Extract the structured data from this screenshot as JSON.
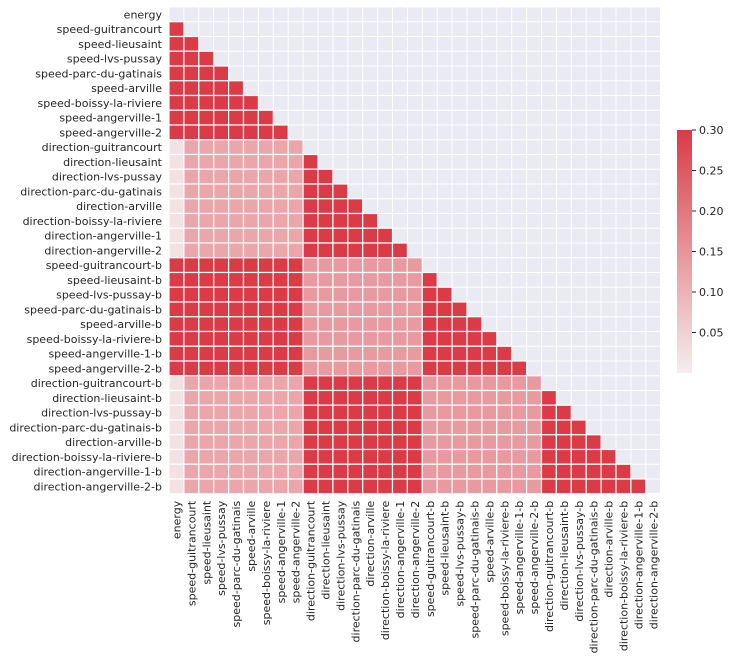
{
  "chart_data": {
    "type": "heatmap",
    "subtype": "lower-triangle correlation matrix",
    "title": "",
    "variables": [
      "energy",
      "speed-guitrancourt",
      "speed-lieusaint",
      "speed-lvs-pussay",
      "speed-parc-du-gatinais",
      "speed-arville",
      "speed-boissy-la-riviere",
      "speed-angerville-1",
      "speed-angerville-2",
      "direction-guitrancourt",
      "direction-lieusaint",
      "direction-lvs-pussay",
      "direction-parc-du-gatinais",
      "direction-arville",
      "direction-boissy-la-riviere",
      "direction-angerville-1",
      "direction-angerville-2",
      "speed-guitrancourt-b",
      "speed-lieusaint-b",
      "speed-lvs-pussay-b",
      "speed-parc-du-gatinais-b",
      "speed-arville-b",
      "speed-boissy-la-riviere-b",
      "speed-angerville-1-b",
      "speed-angerville-2-b",
      "direction-guitrancourt-b",
      "direction-lieusaint-b",
      "direction-lvs-pussay-b",
      "direction-parc-du-gatinais-b",
      "direction-arville-b",
      "direction-boissy-la-riviere-b",
      "direction-angerville-1-b",
      "direction-angerville-2-b"
    ],
    "group_values": {
      "energy_to_group": {
        "S1": 0.5,
        "D1": 0.02,
        "S2": 0.5,
        "D2": 0.02
      },
      "S1_S1": 0.5,
      "D1_S1": 0.12,
      "D1_D1": 0.5,
      "S2_S1": 0.5,
      "S2_D1": 0.14,
      "S2_S2": 0.5,
      "D2_S1": 0.12,
      "D2_D1": 0.5,
      "D2_S2": 0.14,
      "D2_D2": 0.5
    },
    "colorbar": {
      "vmin": 0.0,
      "vmax": 0.3,
      "ticks": [
        0.05,
        0.1,
        0.15,
        0.2,
        0.25,
        0.3
      ],
      "tick_labels": [
        "0.05",
        "0.10",
        "0.15",
        "0.20",
        "0.25",
        "0.30"
      ],
      "low_color": "#f4eeef",
      "high_color": "#da3b46"
    },
    "background_color": "#eaeaf2",
    "gridlines": true
  }
}
